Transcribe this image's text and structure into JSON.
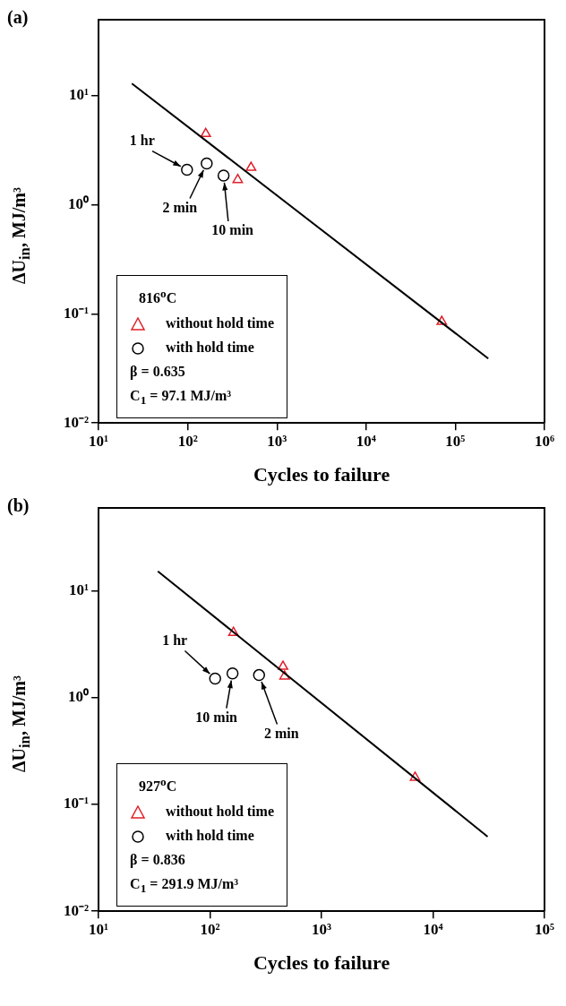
{
  "chart_data": [
    {
      "type": "scatter",
      "title": "(a)",
      "xlabel": "Cycles to failure",
      "ylabel": "ΔU$_{in}$, MJ/m³",
      "legend_title": "816$^{o}$C",
      "log": "xy",
      "grid": false,
      "legend": "bottom left",
      "xlim": [
        10,
        1000000
      ],
      "ylim": [
        0.01,
        50
      ],
      "xticks": [
        {
          "value": 10,
          "label": "10¹"
        },
        {
          "value": 100,
          "label": "10²"
        },
        {
          "value": 1000,
          "label": "10³"
        },
        {
          "value": 10000,
          "label": "10⁴"
        },
        {
          "value": 100000,
          "label": "10⁵"
        },
        {
          "value": 1000000,
          "label": "10⁶"
        }
      ],
      "yticks": [
        {
          "value": 0.01,
          "label": "10⁻²"
        },
        {
          "value": 0.1,
          "label": "10⁻¹"
        },
        {
          "value": 1,
          "label": "10⁰"
        },
        {
          "value": 10,
          "label": "10¹"
        }
      ],
      "series": [
        {
          "type": "line",
          "color": "#000000",
          "marker": "none",
          "line_style": "solid",
          "x": [
            23.6,
            234000
          ],
          "values": [
            13,
            0.039
          ]
        },
        {
          "name": "without hold time",
          "color": "#e0202a",
          "marker": "triangle",
          "x": [
            159,
            512,
            363,
            70500
          ],
          "values": [
            4.5,
            2.2,
            1.7,
            0.085
          ]
        },
        {
          "name": "with hold time",
          "color": "#000000",
          "marker": "circle",
          "x": [
            98,
            163,
            252
          ],
          "values": [
            2.1,
            2.4,
            1.86
          ]
        }
      ],
      "annotations": [
        {
          "text": "1 hr",
          "x": 98,
          "y": 2.1
        },
        {
          "text": "2 min",
          "x": 163,
          "y": 2.4
        },
        {
          "text": "10 min",
          "x": 252,
          "y": 1.86
        },
        "β = 0.635",
        "C$_{1}$ = 97.1 MJ/m³"
      ]
    },
    {
      "type": "scatter",
      "title": "(b)",
      "xlabel": "Cycles to failure",
      "ylabel": "ΔU$_{in}$, MJ/m³",
      "legend_title": "927$^{o}$C",
      "log": "xy",
      "grid": false,
      "legend": "bottom left",
      "xlim": [
        10,
        100000
      ],
      "ylim": [
        0.01,
        60
      ],
      "xticks": [
        {
          "value": 10,
          "label": "10¹"
        },
        {
          "value": 100,
          "label": "10²"
        },
        {
          "value": 1000,
          "label": "10³"
        },
        {
          "value": 10000,
          "label": "10⁴"
        },
        {
          "value": 100000,
          "label": "10⁵"
        }
      ],
      "yticks": [
        {
          "value": 0.01,
          "label": "10⁻²"
        },
        {
          "value": 0.1,
          "label": "10⁻¹"
        },
        {
          "value": 1,
          "label": "10⁰"
        },
        {
          "value": 10,
          "label": "10¹"
        }
      ],
      "series": [
        {
          "type": "line",
          "color": "#000000",
          "marker": "none",
          "line_style": "solid",
          "x": [
            34,
            30900
          ],
          "values": [
            15.3,
            0.05
          ]
        },
        {
          "name": "without hold time",
          "color": "#e0202a",
          "marker": "triangle",
          "x": [
            162,
            451,
            466,
            6900
          ],
          "values": [
            4.07,
            1.96,
            1.59,
            0.179
          ]
        },
        {
          "name": "with hold time",
          "color": "#000000",
          "marker": "circle",
          "x": [
            111,
            159,
            275
          ],
          "values": [
            1.51,
            1.69,
            1.63
          ]
        }
      ],
      "annotations": [
        {
          "text": "1 hr",
          "x": 111,
          "y": 1.51
        },
        {
          "text": "10 min",
          "x": 159,
          "y": 1.69
        },
        {
          "text": "2 min",
          "x": 275,
          "y": 1.63
        },
        "β = 0.836",
        "C$_{1}$ = 291.9 MJ/m³"
      ]
    }
  ]
}
